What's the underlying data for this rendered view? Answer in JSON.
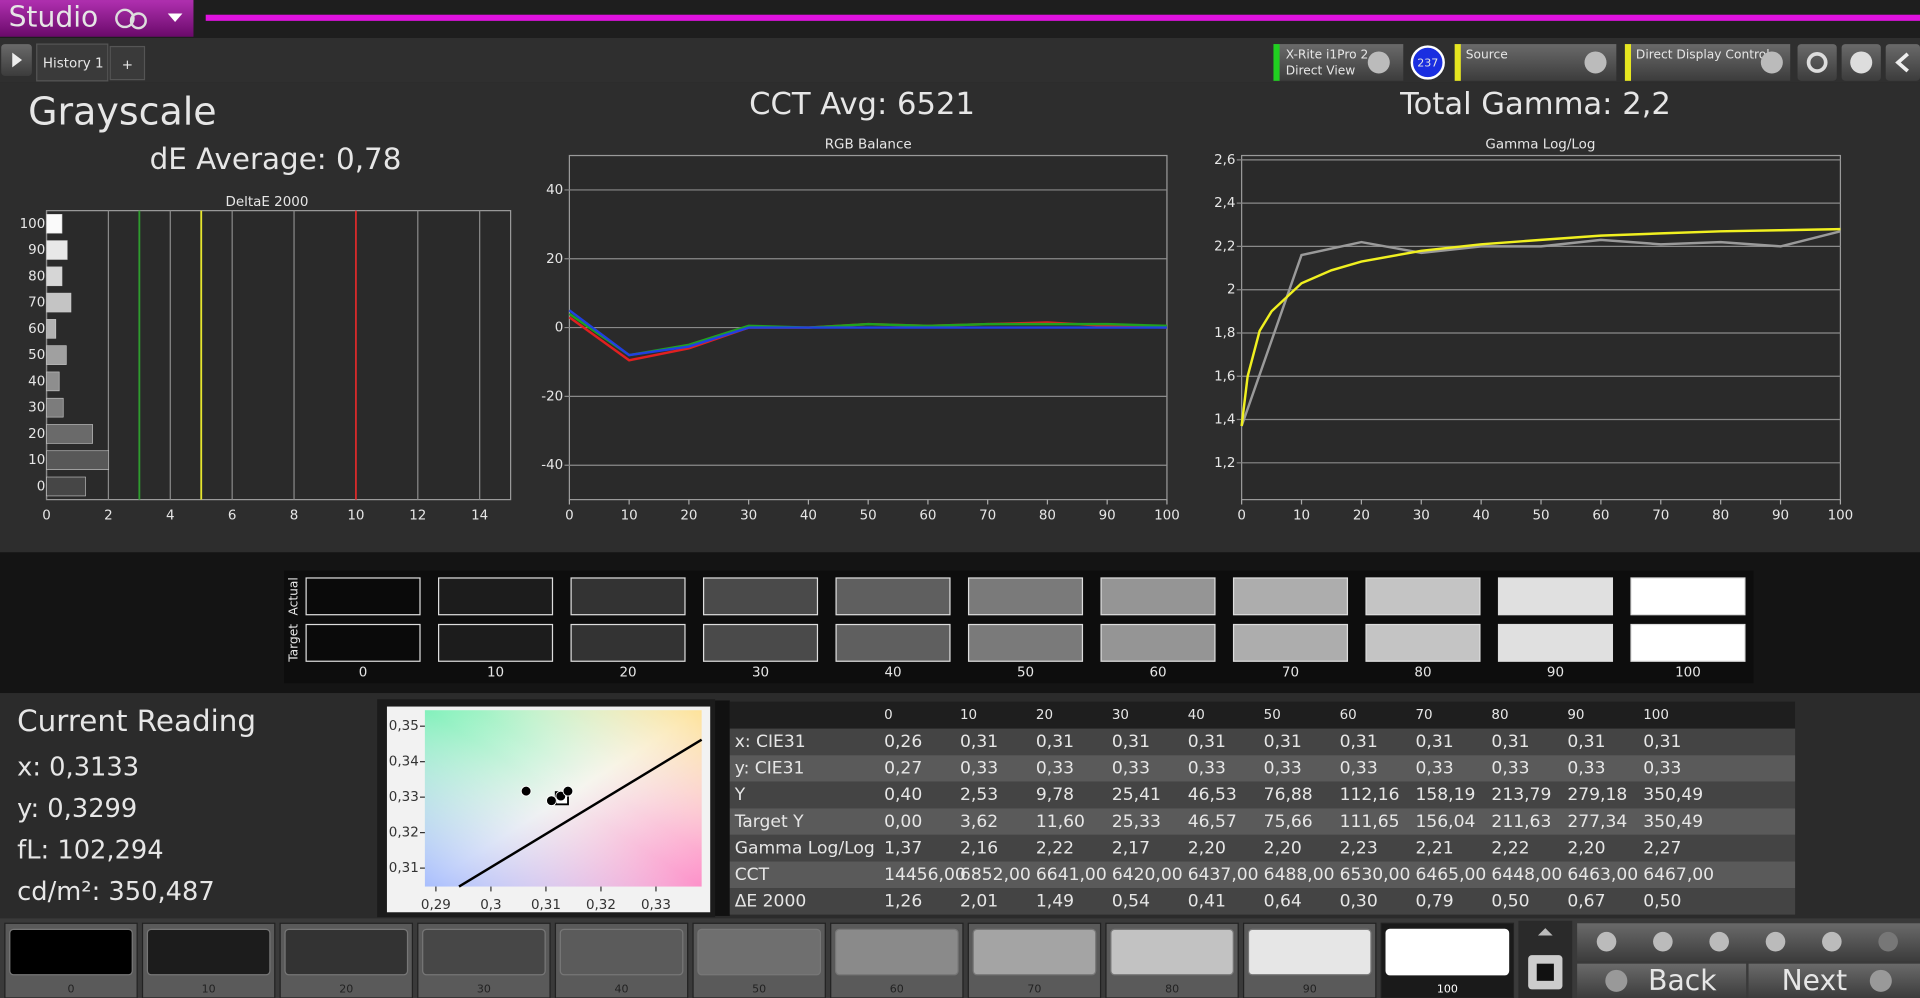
{
  "header": {
    "app": "Studio",
    "tab": "History 1",
    "new_tab": "+",
    "meter": [
      "X-Rite i1Pro 2",
      "Direct View"
    ],
    "badge": "237",
    "source": "Source",
    "display": "Direct Display Control"
  },
  "page": {
    "title": "Grayscale",
    "de_average": "dE Average: 0,78",
    "cct_average": "CCT Avg: 6521",
    "total_gamma": "Total Gamma: 2,2"
  },
  "chart_data": [
    {
      "type": "bar",
      "orientation": "horizontal",
      "title": "DeltaE 2000",
      "categories": [
        "0",
        "10",
        "20",
        "30",
        "40",
        "50",
        "60",
        "70",
        "80",
        "90",
        "100"
      ],
      "values": [
        1.26,
        2.01,
        1.49,
        0.54,
        0.41,
        0.64,
        0.3,
        0.79,
        0.5,
        0.67,
        0.5
      ],
      "xlim": [
        0,
        15
      ],
      "xticks": [
        0,
        2,
        4,
        6,
        8,
        10,
        12,
        14
      ],
      "thresholds": [
        {
          "value": 3,
          "color": "#2e9c2e"
        },
        {
          "value": 5,
          "color": "#e6e62e"
        },
        {
          "value": 10,
          "color": "#d42a2a"
        }
      ]
    },
    {
      "type": "line",
      "title": "RGB Balance",
      "x": [
        0,
        10,
        20,
        30,
        40,
        50,
        60,
        70,
        80,
        90,
        100
      ],
      "series": [
        {
          "color": "#e02020",
          "values": [
            3,
            -9.5,
            -6,
            0,
            0,
            1,
            0.5,
            1,
            1.5,
            0.5,
            0
          ]
        },
        {
          "color": "#20a020",
          "values": [
            4,
            -8,
            -5,
            0.5,
            0,
            1,
            0.5,
            1,
            1,
            1,
            0.5
          ]
        },
        {
          "color": "#2040e0",
          "values": [
            5,
            -8,
            -5.5,
            0,
            0,
            0,
            0,
            0,
            0,
            0,
            0
          ]
        }
      ],
      "xlim": [
        0,
        100
      ],
      "xticks": [
        0,
        10,
        20,
        30,
        40,
        50,
        60,
        70,
        80,
        90,
        100
      ],
      "ylim": [
        -50,
        50
      ],
      "yticks": [
        -40,
        -20,
        0,
        20,
        40
      ]
    },
    {
      "type": "line",
      "title": "Gamma Log/Log",
      "series": [
        {
          "color": "#9a9a9a",
          "x": [
            0,
            10,
            20,
            30,
            40,
            50,
            60,
            70,
            80,
            90,
            100
          ],
          "values": [
            1.37,
            2.16,
            2.22,
            2.17,
            2.2,
            2.2,
            2.23,
            2.21,
            2.22,
            2.2,
            2.27
          ]
        },
        {
          "color": "#f0f020",
          "x": [
            0,
            1,
            3,
            5,
            10,
            15,
            20,
            30,
            40,
            50,
            60,
            70,
            80,
            90,
            100
          ],
          "values": [
            1.37,
            1.6,
            1.81,
            1.9,
            2.03,
            2.09,
            2.13,
            2.18,
            2.21,
            2.23,
            2.25,
            2.26,
            2.27,
            2.275,
            2.28
          ]
        }
      ],
      "xlim": [
        0,
        100
      ],
      "xticks": [
        0,
        10,
        20,
        30,
        40,
        50,
        60,
        70,
        80,
        90,
        100
      ],
      "ylim": [
        1.03,
        2.62
      ],
      "yticks": [
        {
          "value": 1.2,
          "label": "1,2"
        },
        {
          "value": 1.4,
          "label": "1,4"
        },
        {
          "value": 1.6,
          "label": "1,6"
        },
        {
          "value": 1.8,
          "label": "1,8"
        },
        2,
        {
          "value": 2.2,
          "label": "2,2"
        },
        {
          "value": 2.4,
          "label": "2,4"
        },
        {
          "value": 2.6,
          "label": "2,6"
        }
      ]
    },
    {
      "type": "scatter",
      "series": [
        {
          "color": "#000000",
          "x": [
            0.3064,
            0.311,
            0.3127,
            0.314
          ],
          "values": [
            0.3317,
            0.329,
            0.3303,
            0.3317
          ]
        }
      ],
      "target": {
        "x": 0.3129,
        "y": 0.3297
      },
      "locus": {
        "x": [
          0.2942,
          0.3383
        ],
        "values": [
          0.3048,
          0.3462
        ]
      },
      "xlim": [
        0.288,
        0.3383
      ],
      "xticks": [
        {
          "value": 0.29,
          "label": "0,29"
        },
        {
          "value": 0.3,
          "label": "0,3"
        },
        {
          "value": 0.31,
          "label": "0,31"
        },
        {
          "value": 0.32,
          "label": "0,32"
        },
        {
          "value": 0.33,
          "label": "0,33"
        }
      ],
      "ylim": [
        0.3048,
        0.3545
      ],
      "yticks": [
        {
          "value": 0.31,
          "label": "0,31"
        },
        {
          "value": 0.32,
          "label": "0,32"
        },
        {
          "value": 0.33,
          "label": "0,33"
        },
        {
          "value": 0.34,
          "label": "0,34"
        },
        {
          "value": 0.35,
          "label": "0,35"
        }
      ]
    }
  ],
  "swatches": {
    "rows": [
      "Actual",
      "Target"
    ],
    "labels": [
      "0",
      "10",
      "20",
      "30",
      "40",
      "50",
      "60",
      "70",
      "80",
      "90",
      "100"
    ],
    "actual": [
      "#0a0a0a",
      "#1c1c1c",
      "#333333",
      "#4a4a4a",
      "#5f5f5f",
      "#7a7a7a",
      "#959595",
      "#adadad",
      "#c4c4c4",
      "#e0e0e0",
      "#ffffff"
    ],
    "target": [
      "#0a0a0a",
      "#1c1c1c",
      "#333333",
      "#4a4a4a",
      "#5f5f5f",
      "#7a7a7a",
      "#959595",
      "#adadad",
      "#c4c4c4",
      "#e0e0e0",
      "#ffffff"
    ]
  },
  "reading": {
    "title": "Current Reading",
    "lines": [
      "x: 0,3133",
      "y: 0,3299",
      "fL: 102,294",
      "cd/m²: 350,487"
    ]
  },
  "table": {
    "header": [
      "0",
      "10",
      "20",
      "30",
      "40",
      "50",
      "60",
      "70",
      "80",
      "90",
      "100"
    ],
    "rows": [
      [
        "x: CIE31",
        "0,26",
        "0,31",
        "0,31",
        "0,31",
        "0,31",
        "0,31",
        "0,31",
        "0,31",
        "0,31",
        "0,31",
        "0,31"
      ],
      [
        "y: CIE31",
        "0,27",
        "0,33",
        "0,33",
        "0,33",
        "0,33",
        "0,33",
        "0,33",
        "0,33",
        "0,33",
        "0,33",
        "0,33"
      ],
      [
        "Y",
        "0,40",
        "2,53",
        "9,78",
        "25,41",
        "46,53",
        "76,88",
        "112,16",
        "158,19",
        "213,79",
        "279,18",
        "350,49"
      ],
      [
        "Target Y",
        "0,00",
        "3,62",
        "11,60",
        "25,33",
        "46,57",
        "75,66",
        "111,65",
        "156,04",
        "211,63",
        "277,34",
        "350,49"
      ],
      [
        "Gamma Log/Log",
        "1,37",
        "2,16",
        "2,22",
        "2,17",
        "2,20",
        "2,20",
        "2,23",
        "2,21",
        "2,22",
        "2,20",
        "2,27"
      ],
      [
        "CCT",
        "14456,00",
        "6852,00",
        "6641,00",
        "6420,00",
        "6437,00",
        "6488,00",
        "6530,00",
        "6465,00",
        "6448,00",
        "6463,00",
        "6467,00"
      ],
      [
        "ΔE 2000",
        "1,26",
        "2,01",
        "1,49",
        "0,54",
        "0,41",
        "0,64",
        "0,30",
        "0,79",
        "0,50",
        "0,67",
        "0,50"
      ]
    ]
  },
  "patches": {
    "labels": [
      "0",
      "10",
      "20",
      "30",
      "40",
      "50",
      "60",
      "70",
      "80",
      "90",
      "100"
    ],
    "colors": [
      "#000000",
      "#1c1c1c",
      "#333333",
      "#474747",
      "#5b5b5b",
      "#6f6f6f",
      "#8a8a8a",
      "#a4a4a4",
      "#c2c2c2",
      "#e6e6e6",
      "#ffffff"
    ],
    "selected": 10
  },
  "nav": {
    "back": "Back",
    "next": "Next"
  }
}
